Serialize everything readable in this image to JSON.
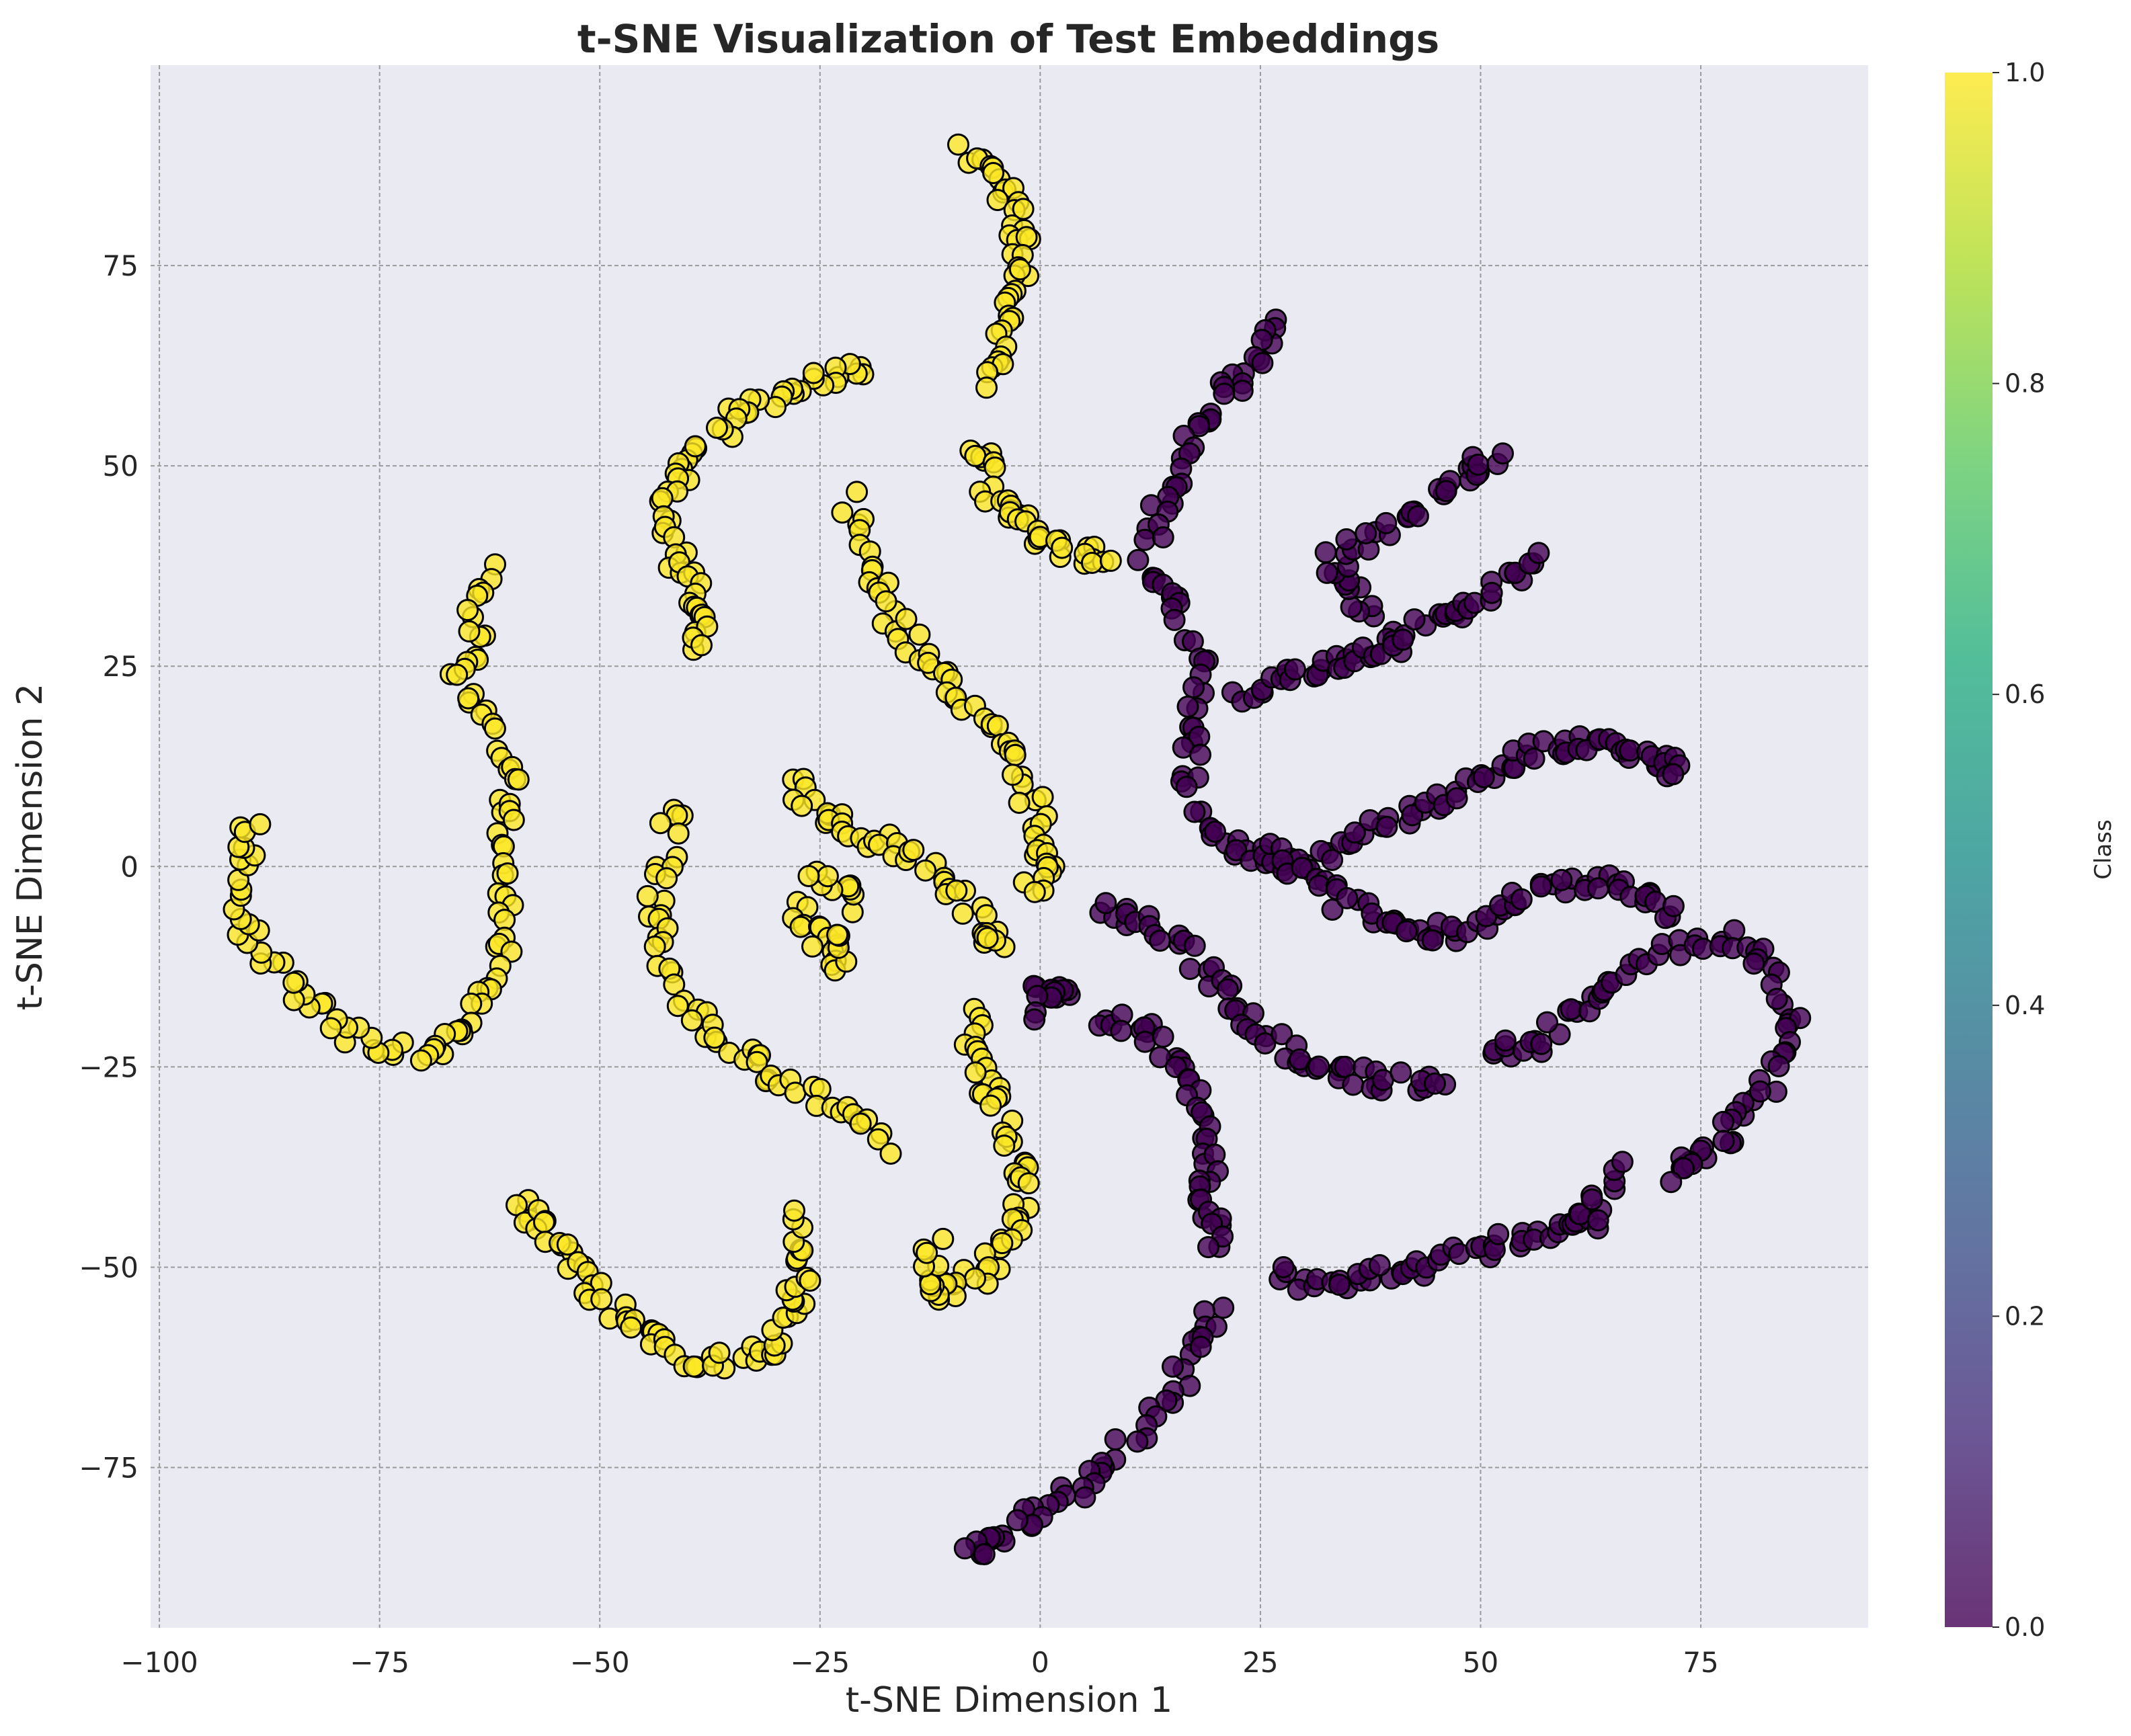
{
  "chart_data": {
    "type": "scatter",
    "title": "t-SNE Visualization of Test Embeddings",
    "xlabel": "t-SNE Dimension 1",
    "ylabel": "t-SNE Dimension 2",
    "xlim": [
      -101,
      94
    ],
    "ylim": [
      -95,
      100
    ],
    "xticks": [
      -100,
      -75,
      -50,
      -25,
      0,
      25,
      50,
      75
    ],
    "yticks": [
      -75,
      -50,
      -25,
      0,
      25,
      50,
      75
    ],
    "xtick_labels": [
      "−100",
      "−75",
      "−50",
      "−25",
      "0",
      "25",
      "50",
      "75"
    ],
    "ytick_labels": [
      "−75",
      "−50",
      "−25",
      "0",
      "25",
      "50",
      "75"
    ],
    "grid": true,
    "colormap": "viridis",
    "marker_edge_color": "#000000",
    "plot_background": "#eaeaf2",
    "colorbar": {
      "label": "Class",
      "range": [
        0,
        1
      ],
      "ticks": [
        0.0,
        0.2,
        0.4,
        0.6,
        0.8,
        1.0
      ],
      "tick_labels": [
        "0.0",
        "0.2",
        "0.4",
        "0.6",
        "0.8",
        "1.0"
      ]
    },
    "series": [
      {
        "class": 1,
        "color": "#fde725",
        "clusters": [
          [
            [
              -8,
              89
            ],
            [
              -5,
              86
            ],
            [
              -3,
              81
            ],
            [
              -2,
              77
            ],
            [
              -3,
              72
            ],
            [
              -5,
              66
            ],
            [
              -5,
              60
            ]
          ],
          [
            [
              -7,
              53
            ],
            [
              -6,
              48
            ],
            [
              -3,
              44
            ],
            [
              0,
              41
            ],
            [
              4,
              39
            ],
            [
              7,
              38
            ]
          ],
          [
            [
              -20,
              62
            ],
            [
              -25,
              61
            ],
            [
              -30,
              59
            ],
            [
              -35,
              56
            ],
            [
              -39,
              52
            ],
            [
              -42,
              47
            ],
            [
              -42,
              42
            ],
            [
              -40,
              36
            ],
            [
              -39,
              31
            ],
            [
              -39,
              27
            ]
          ],
          [
            [
              -22,
              46
            ],
            [
              -20,
              38
            ],
            [
              -17,
              32
            ],
            [
              -14,
              27
            ],
            [
              -10,
              22
            ],
            [
              -6,
              18
            ],
            [
              -3,
              12
            ],
            [
              0,
              6
            ],
            [
              1,
              0
            ],
            [
              -1,
              -3
            ]
          ],
          [
            [
              -62,
              38
            ],
            [
              -64,
              30
            ],
            [
              -66,
              24
            ],
            [
              -63,
              17
            ],
            [
              -60,
              10
            ],
            [
              -61,
              3
            ],
            [
              -61,
              -5
            ],
            [
              -61,
              -12
            ],
            [
              -64,
              -19
            ],
            [
              -69,
              -23
            ],
            [
              -75,
              -23
            ],
            [
              -81,
              -19
            ],
            [
              -86,
              -14
            ],
            [
              -90,
              -8
            ],
            [
              -91,
              -1
            ],
            [
              -89,
              6
            ]
          ],
          [
            [
              -41,
              8
            ],
            [
              -43,
              0
            ],
            [
              -44,
              -7
            ],
            [
              -42,
              -14
            ],
            [
              -38,
              -20
            ],
            [
              -33,
              -24
            ],
            [
              -28,
              -27
            ],
            [
              -22,
              -31
            ],
            [
              -18,
              -35
            ]
          ],
          [
            [
              -28,
              11
            ],
            [
              -25,
              6
            ],
            [
              -20,
              4
            ],
            [
              -15,
              2
            ],
            [
              -10,
              -2
            ],
            [
              -6,
              -7
            ],
            [
              -5,
              -10
            ]
          ],
          [
            [
              -28,
              -5
            ],
            [
              -25,
              -9
            ],
            [
              -22,
              -13
            ],
            [
              -22,
              -3
            ],
            [
              -25,
              0
            ]
          ],
          [
            [
              -8,
              -19
            ],
            [
              -7,
              -24
            ],
            [
              -5,
              -29
            ],
            [
              -3,
              -35
            ],
            [
              -2,
              -40
            ],
            [
              -3,
              -45
            ],
            [
              -6,
              -50
            ],
            [
              -10,
              -53
            ],
            [
              -13,
              -53
            ],
            [
              -12,
              -47
            ]
          ],
          [
            [
              -59,
              -42
            ],
            [
              -56,
              -45
            ],
            [
              -53,
              -49
            ],
            [
              -50,
              -54
            ],
            [
              -46,
              -58
            ],
            [
              -41,
              -61
            ],
            [
              -36,
              -62
            ],
            [
              -31,
              -60
            ],
            [
              -28,
              -55
            ],
            [
              -27,
              -50
            ],
            [
              -27,
              -44
            ]
          ]
        ]
      },
      {
        "class": 0,
        "color": "#440154",
        "clusters": [
          [
            [
              27,
              68
            ],
            [
              24,
              63
            ],
            [
              20,
              58
            ],
            [
              17,
              52
            ],
            [
              14,
              46
            ],
            [
              13,
              41
            ]
          ],
          [
            [
              12,
              38
            ],
            [
              15,
              33
            ],
            [
              18,
              26
            ],
            [
              17,
              18
            ],
            [
              17,
              11
            ],
            [
              20,
              4
            ],
            [
              24,
              1
            ],
            [
              29,
              0
            ]
          ],
          [
            [
              40,
              28
            ],
            [
              36,
              34
            ],
            [
              33,
              38
            ],
            [
              38,
              41
            ],
            [
              44,
              45
            ],
            [
              48,
              49
            ],
            [
              52,
              51
            ]
          ],
          [
            [
              23,
              21
            ],
            [
              28,
              24
            ],
            [
              33,
              25
            ],
            [
              37,
              26
            ],
            [
              42,
              29
            ],
            [
              47,
              32
            ],
            [
              52,
              35
            ],
            [
              57,
              39
            ]
          ],
          [
            [
              29,
              0
            ],
            [
              34,
              2
            ],
            [
              39,
              5
            ],
            [
              45,
              8
            ],
            [
              50,
              11
            ],
            [
              55,
              14
            ],
            [
              60,
              15
            ],
            [
              65,
              15
            ],
            [
              70,
              13
            ],
            [
              72,
              12
            ]
          ],
          [
            [
              27,
              2
            ],
            [
              32,
              -3
            ],
            [
              37,
              -6
            ],
            [
              42,
              -8
            ],
            [
              47,
              -8
            ],
            [
              52,
              -6
            ],
            [
              57,
              -3
            ],
            [
              63,
              -2
            ],
            [
              68,
              -3
            ],
            [
              72,
              -6
            ]
          ],
          [
            [
              51,
              -24
            ],
            [
              56,
              -22
            ],
            [
              61,
              -18
            ],
            [
              66,
              -14
            ],
            [
              72,
              -10
            ],
            [
              78,
              -9
            ],
            [
              83,
              -13
            ],
            [
              85,
              -20
            ],
            [
              83,
              -27
            ],
            [
              79,
              -32
            ],
            [
              75,
              -36
            ],
            [
              72,
              -39
            ]
          ],
          [
            [
              7,
              -5
            ],
            [
              12,
              -7
            ],
            [
              17,
              -11
            ],
            [
              21,
              -16
            ],
            [
              25,
              -20
            ],
            [
              30,
              -24
            ],
            [
              35,
              -26
            ],
            [
              40,
              -27
            ],
            [
              46,
              -26
            ]
          ],
          [
            [
              7,
              -19
            ],
            [
              12,
              -20
            ],
            [
              16,
              -25
            ],
            [
              18,
              -31
            ],
            [
              19,
              -37
            ],
            [
              19,
              -43
            ],
            [
              20,
              -48
            ]
          ],
          [
            [
              20,
              -55
            ],
            [
              18,
              -60
            ],
            [
              14,
              -67
            ],
            [
              9,
              -73
            ],
            [
              4,
              -78
            ],
            [
              -1,
              -81
            ],
            [
              -5,
              -84
            ],
            [
              -8,
              -86
            ]
          ],
          [
            [
              27,
              -51
            ],
            [
              33,
              -52
            ],
            [
              38,
              -51
            ],
            [
              44,
              -50
            ],
            [
              50,
              -48
            ],
            [
              55,
              -46
            ],
            [
              60,
              -45
            ],
            [
              63,
              -44
            ],
            [
              65,
              -38
            ]
          ],
          [
            [
              0,
              -15
            ],
            [
              3,
              -16
            ],
            [
              -1,
              -18
            ]
          ]
        ]
      }
    ]
  }
}
